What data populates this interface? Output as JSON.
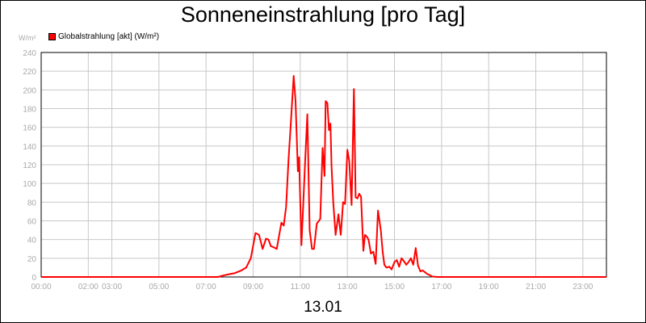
{
  "chart_data": {
    "type": "line",
    "title": "Sonneneinstrahlung [pro Tag]",
    "ylabel": "W/m²",
    "xlabel": "13.01",
    "ylim": [
      0,
      240
    ],
    "y_ticks": [
      "0",
      "20",
      "40",
      "60",
      "80",
      "100",
      "120",
      "140",
      "160",
      "180",
      "200",
      "220",
      "240"
    ],
    "x_ticks": [
      "00:00",
      "02:00",
      "03:00",
      "05:00",
      "07:00",
      "09:00",
      "11:00",
      "13:00",
      "15:00",
      "17:00",
      "19:00",
      "21:00",
      "23:00"
    ],
    "grid": true,
    "legend_position": "top-left",
    "series": [
      {
        "name": "Globalstrahlung [akt] (W/m²)",
        "color": "#ff0000",
        "x": [
          0,
          7.5,
          7.8,
          8.0,
          8.2,
          8.5,
          8.7,
          8.9,
          9.1,
          9.25,
          9.4,
          9.55,
          9.65,
          9.75,
          9.85,
          10.0,
          10.1,
          10.2,
          10.3,
          10.4,
          10.5,
          10.6,
          10.72,
          10.8,
          10.9,
          10.95,
          11.05,
          11.2,
          11.3,
          11.4,
          11.5,
          11.58,
          11.7,
          11.85,
          11.95,
          12.03,
          12.08,
          12.15,
          12.22,
          12.28,
          12.33,
          12.4,
          12.5,
          12.62,
          12.72,
          12.82,
          12.9,
          13.0,
          13.08,
          13.18,
          13.28,
          13.35,
          13.43,
          13.5,
          13.58,
          13.68,
          13.75,
          13.83,
          13.9,
          14.0,
          14.1,
          14.2,
          14.3,
          14.42,
          14.5,
          14.57,
          14.66,
          14.78,
          14.88,
          15.0,
          15.1,
          15.2,
          15.3,
          15.4,
          15.5,
          15.6,
          15.7,
          15.8,
          15.9,
          16.0,
          16.1,
          16.2,
          16.3,
          16.4,
          16.5,
          16.6,
          16.8,
          17.0,
          17.2,
          17.5,
          24.0
        ],
        "values": [
          0,
          0,
          2,
          3,
          4,
          7,
          10,
          20,
          47,
          45,
          30,
          41,
          40,
          33,
          32,
          30,
          44,
          58,
          55,
          75,
          125,
          165,
          215,
          188,
          113,
          128,
          34,
          120,
          174,
          50,
          30,
          30,
          57,
          62,
          138,
          108,
          188,
          186,
          157,
          164,
          118,
          80,
          45,
          67,
          45,
          80,
          78,
          136,
          124,
          77,
          201,
          85,
          84,
          89,
          86,
          28,
          45,
          43,
          40,
          25,
          27,
          14,
          71,
          50,
          27,
          13,
          10,
          11,
          8,
          16,
          18,
          11,
          20,
          17,
          13,
          16,
          20,
          13,
          31,
          12,
          6,
          7,
          5,
          3,
          2,
          0.5,
          0,
          0,
          0,
          0,
          0
        ]
      }
    ]
  }
}
